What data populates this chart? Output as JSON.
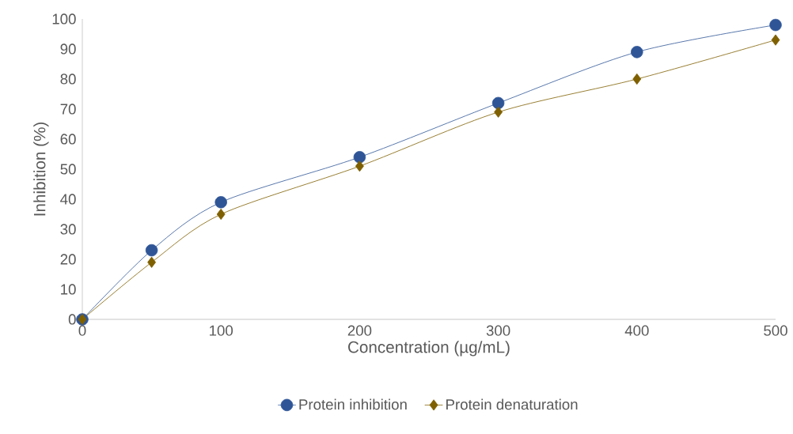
{
  "chart_data": {
    "type": "line",
    "xlabel": "Concentration (µg/mL)",
    "ylabel": "Inhibition (%)",
    "x": [
      0,
      50,
      100,
      200,
      300,
      400,
      500
    ],
    "series": [
      {
        "name": "Protein inhibition",
        "color": "#2f5597",
        "marker": "circle",
        "values": [
          0,
          23,
          39,
          54,
          72,
          89,
          98
        ]
      },
      {
        "name": "Protein denaturation",
        "color": "#7f6000",
        "marker": "diamond",
        "values": [
          0,
          19,
          35,
          51,
          69,
          80,
          93
        ]
      }
    ],
    "xlim": [
      0,
      500
    ],
    "xticks": [
      0,
      100,
      200,
      300,
      400,
      500
    ],
    "ylim": [
      0,
      100
    ],
    "yticks": [
      0,
      10,
      20,
      30,
      40,
      50,
      60,
      70,
      80,
      90,
      100
    ],
    "grid": false,
    "legend": "bottom",
    "line_style": "solid"
  }
}
